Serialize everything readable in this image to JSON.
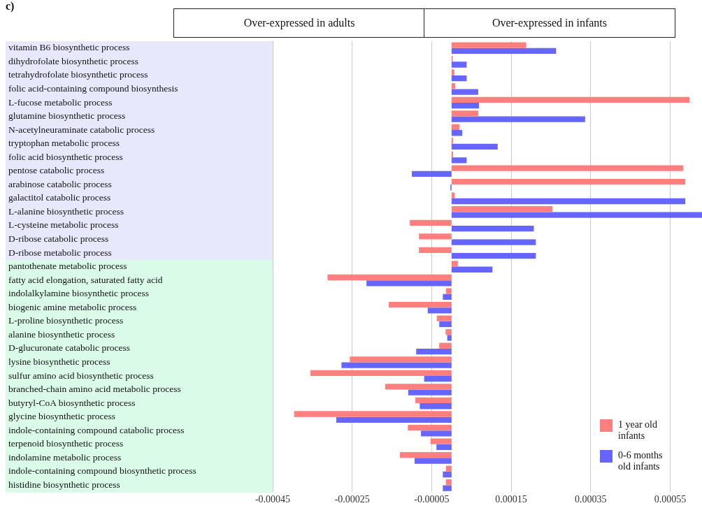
{
  "chart_data": {
    "type": "bar",
    "orientation": "horizontal",
    "annotations": [
      "c)",
      "Over-expressed in adults",
      "Over-expressed in infants"
    ],
    "categories": [
      "vitamin B6 biosynthetic process",
      "dihydrofolate biosynthetic process",
      "tetrahydrofolate biosynthetic process",
      "folic acid-containing compound biosynthesis",
      "L-fucose metabolic process",
      "glutamine biosynthetic process",
      "N-acetylneuraminate catabolic process",
      "tryptophan metabolic process",
      "folic acid biosynthetic process",
      "pentose catabolic process",
      "arabinose catabolic process",
      "galactitol catabolic process",
      "L-alanine biosynthetic process",
      "L-cysteine metabolic process",
      "D-ribose catabolic process",
      "D-ribose metabolic process",
      "pantothenate metabolic process",
      "fatty acid elongation, saturated fatty acid",
      "indolalkylamine biosynthetic process",
      "biogenic amine metabolic process",
      "L-proline biosynthetic process",
      "alanine biosynthetic process",
      "D-glucuronate catabolic process",
      "lysine biosynthetic process",
      "sulfur amino acid biosynthetic process",
      "branched-chain amino acid metabolic process",
      "butyryl-CoA biosynthetic process",
      "glycine biosynthetic process",
      "indole-containing compound catabolic process",
      "terpenoid biosynthetic process",
      "indolamine metabolic process",
      "indole-containing compound biosynthetic process",
      "histidine biosynthetic process"
    ],
    "series": [
      {
        "name": "1 year old infants",
        "color": "#ff7f7f",
        "values": [
          0.000188,
          3e-06,
          7e-06,
          9e-06,
          0.000599,
          6.7e-05,
          2e-05,
          4e-06,
          4e-06,
          0.000583,
          0.000588,
          8e-06,
          0.000254,
          -0.000105,
          -8.2e-05,
          -8.2e-05,
          1.6e-05,
          -0.000312,
          -1.4e-05,
          -0.000158,
          -3.7e-05,
          -1.5e-05,
          -3.1e-05,
          -0.000256,
          -0.000355,
          -0.000167,
          -9.1e-05,
          -0.000396,
          -0.00011,
          -5.3e-05,
          -0.00013,
          -1.4e-05,
          -1.4e-05
        ]
      },
      {
        "name": "0-6 months old infants",
        "color": "#6666ff",
        "values": [
          0.000263,
          3.8e-05,
          3.8e-05,
          6.7e-05,
          6.9e-05,
          0.000336,
          2.7e-05,
          0.000116,
          3.8e-05,
          -0.0001,
          -3e-06,
          0.000588,
          0.00063,
          0.000207,
          0.000212,
          0.000212,
          0.000103,
          -0.000214,
          -2.2e-05,
          -6e-05,
          -3.1e-05,
          -1.1e-05,
          -8.9e-05,
          -0.000277,
          -6.9e-05,
          -0.000109,
          -8e-05,
          -0.00029,
          -7.7e-05,
          -3.8e-05,
          -9.3e-05,
          -2.2e-05,
          -2.2e-05
        ]
      }
    ],
    "xlim": [
      -0.00045,
      0.00063
    ],
    "xticks": [
      -0.00045,
      -0.00025,
      {
        "value": -5e-05,
        "label": "-0.00005"
      },
      0.00015,
      0.00035,
      0.00055
    ],
    "grid": "x",
    "legend": "bottom right"
  }
}
